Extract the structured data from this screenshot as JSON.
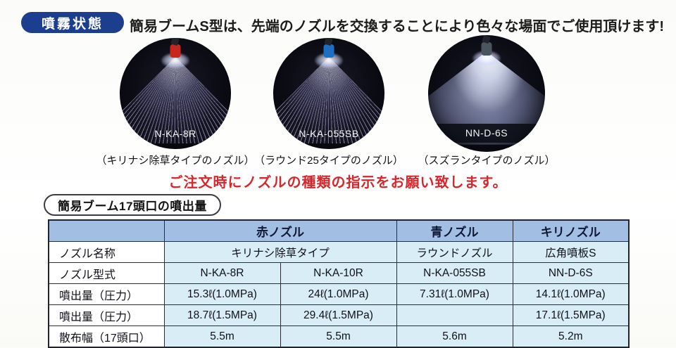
{
  "page": {
    "badge": "噴霧状態",
    "title": "簡易ブームS型は、先端のノズルを交換することにより色々な場面でご使用頂けます!"
  },
  "nozzle_figures": [
    {
      "model": "N-KA-8R",
      "caption": "（キリナシ除草タイプのノズル）",
      "tip_color": "#c8251d"
    },
    {
      "model": "N-KA-055SB",
      "caption": "（ラウンド25タイプのノズル）",
      "tip_color": "#1d6fc2"
    },
    {
      "model": "NN-D-6S",
      "caption": "（スズランタイプのノズル）",
      "tip_color": "#4a5560"
    }
  ],
  "order_notice": "ご注文時にノズルの種類の指示をお願い致します。",
  "table_section": {
    "label": "簡易ブーム17頭口の噴出量",
    "column_headers": {
      "blank": "",
      "red": "赤ノズル",
      "blue": "青ノズル",
      "kiri": "キリノズル"
    },
    "rows": [
      {
        "label": "ノズル名称",
        "red_span": "キリナシ除草タイプ",
        "blue": "ラウンドノズル",
        "kiri": "広角噴板S"
      },
      {
        "label": "ノズル型式",
        "red1": "N-KA-8R",
        "red2": "N-KA-10R",
        "blue": "N-KA-055SB",
        "kiri": "NN-D-6S"
      },
      {
        "label": "噴出量（圧力）",
        "red1": "15.3ℓ(1.0MPa)",
        "red2": "24ℓ(1.0MPa)",
        "blue": "7.31ℓ(1.0MPa)",
        "kiri": "14.1ℓ(1.0MPa)"
      },
      {
        "label": "噴出量（圧力）",
        "red1": "18.7ℓ(1.5MPa)",
        "red2": "29.4ℓ(1.5MPa)",
        "blue": "",
        "kiri": "17.1ℓ(1.5MPa)"
      },
      {
        "label": "散布幅（17頭口）",
        "red1": "5.5m",
        "red2": "5.5m",
        "blue": "5.6m",
        "kiri": "5.2m"
      }
    ]
  },
  "colors": {
    "badge_blue": "#1b3e8f",
    "notice_red": "#d8262b",
    "table_header_blue": "#a2bee2",
    "table_cell_blue": "#d9edf6",
    "red_nozzle_tip": "#c8251d",
    "blue_nozzle_tip": "#1d6fc2"
  }
}
